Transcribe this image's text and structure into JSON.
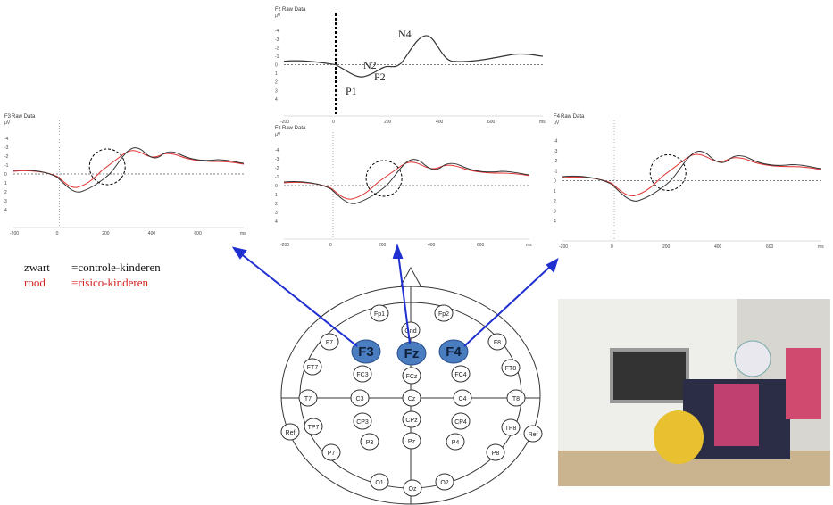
{
  "plots": [
    {
      "label": "Fz",
      "sublabel": "Raw Data",
      "unit": "µV",
      "yticks": [
        "-4",
        "-3",
        "-2",
        "-1",
        "0",
        "1",
        "2",
        "3",
        "4"
      ],
      "xticks": [
        "-200",
        "0",
        "200",
        "400",
        "600",
        "ms"
      ]
    },
    {
      "label": "F3",
      "sublabel": "Raw Data",
      "unit": "µV",
      "yticks": [
        "-4",
        "-3",
        "-2",
        "-1",
        "0",
        "1",
        "2",
        "3",
        "4"
      ],
      "xticks": [
        "-200",
        "0",
        "200",
        "400",
        "600",
        "ms"
      ]
    },
    {
      "label": "Fz",
      "sublabel": "Raw Data",
      "unit": "µV",
      "yticks": [
        "-4",
        "-3",
        "-2",
        "-1",
        "0",
        "1",
        "2",
        "3",
        "4"
      ],
      "xticks": [
        "-200",
        "0",
        "200",
        "400",
        "600",
        "ms"
      ]
    },
    {
      "label": "F4",
      "sublabel": "Raw Data",
      "unit": "µV",
      "yticks": [
        "-4",
        "-3",
        "-2",
        "-1",
        "0",
        "1",
        "2",
        "3",
        "4"
      ],
      "xticks": [
        "-200",
        "0",
        "200",
        "400",
        "600",
        "ms"
      ]
    }
  ],
  "annotations": [
    "N4",
    "N2",
    "P2",
    "P1"
  ],
  "legend": [
    {
      "key": "zwart",
      "text": "=controle-kinderen"
    },
    {
      "key": "rood",
      "text": "=risico-kinderen"
    }
  ],
  "electrodes": [
    "Fp1",
    "Fp2",
    "Gnd",
    "F7",
    "F3",
    "Fz",
    "F4",
    "F8",
    "FT7",
    "FC3",
    "FCz",
    "FC4",
    "FT8",
    "T7",
    "C3",
    "Cz",
    "C4",
    "T8",
    "TP7",
    "CP3",
    "CPz",
    "CP4",
    "TP8",
    "Ref",
    "Ref",
    "P7",
    "P3",
    "Pz",
    "P4",
    "P8",
    "O1",
    "Oz",
    "O2"
  ]
}
